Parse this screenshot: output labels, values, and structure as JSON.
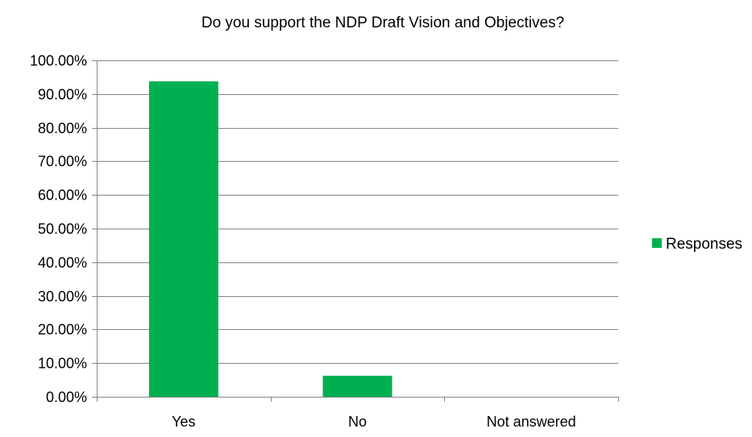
{
  "chart_data": {
    "type": "bar",
    "title": "Do you support the NDP Draft Vision and Objectives?",
    "categories": [
      "Yes",
      "No",
      "Not answered"
    ],
    "series": [
      {
        "name": "Responses",
        "values": [
          93.75,
          6.25,
          0
        ],
        "color": "#00b050"
      }
    ],
    "ylim": [
      0,
      100
    ],
    "yticks": [
      0,
      10,
      20,
      30,
      40,
      50,
      60,
      70,
      80,
      90,
      100
    ],
    "ytick_labels": [
      "0.00%",
      "10.00%",
      "20.00%",
      "30.00%",
      "40.00%",
      "50.00%",
      "60.00%",
      "70.00%",
      "80.00%",
      "90.00%",
      "100.00%"
    ],
    "grid": true,
    "legend_position": "right"
  }
}
